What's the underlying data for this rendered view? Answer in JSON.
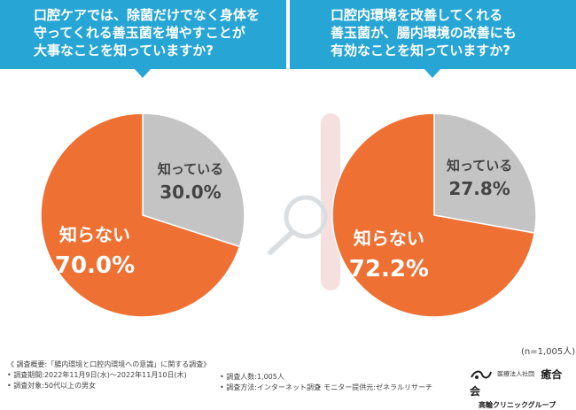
{
  "left_question": {
    "lines": [
      "口腔ケアでは、除菌だけでなく身体を",
      "守ってくれる善玉菌を増やすことが",
      "大事なことを知っていますか?"
    ]
  },
  "right_question": {
    "lines": [
      "口腔内環境を改善してくれる",
      "善玉菌が、腸内環境の改善にも",
      "有効なことを知っていますか?"
    ]
  },
  "colors": {
    "banner": "#27a5d4",
    "orange": "#ee7033",
    "gray": "#c4c4c4",
    "dark_text": "#444444"
  },
  "chart_data": [
    {
      "type": "pie",
      "title": "口腔ケアでは、除菌だけでなく身体を守ってくれる善玉菌を増やすことが大事なことを知っていますか?",
      "slices": [
        {
          "label": "知っている",
          "value": 30.0,
          "display": "30.0%",
          "color": "#c4c4c4"
        },
        {
          "label": "知らない",
          "value": 70.0,
          "display": "70.0%",
          "color": "#ee7033"
        }
      ]
    },
    {
      "type": "pie",
      "title": "口腔内環境を改善してくれる善玉菌が、腸内環境の改善にも有効なことを知っていますか?",
      "slices": [
        {
          "label": "知っている",
          "value": 27.8,
          "display": "27.8%",
          "color": "#c4c4c4"
        },
        {
          "label": "知らない",
          "value": 72.2,
          "display": "72.2%",
          "color": "#ee7033"
        }
      ]
    }
  ],
  "sample_note": "(n=1,005人)",
  "footer": {
    "overview": "《 調査概要:「腸内環境と口腔内環境への意識」に関する調査》",
    "period": "• 調査期間:2022年11月9日(水)〜2022年11月10日(木)",
    "target": "• 調査対象:50代以上の男女",
    "count": "• 調査人数:1,005人",
    "method": "• 調査方法:インターネット調査",
    "monitor": "• モニター提供元:ゼネラルリサーチ"
  },
  "org": {
    "corp": "医療法人社団",
    "name": "癒合会",
    "group": "高輪クリニックグループ"
  }
}
